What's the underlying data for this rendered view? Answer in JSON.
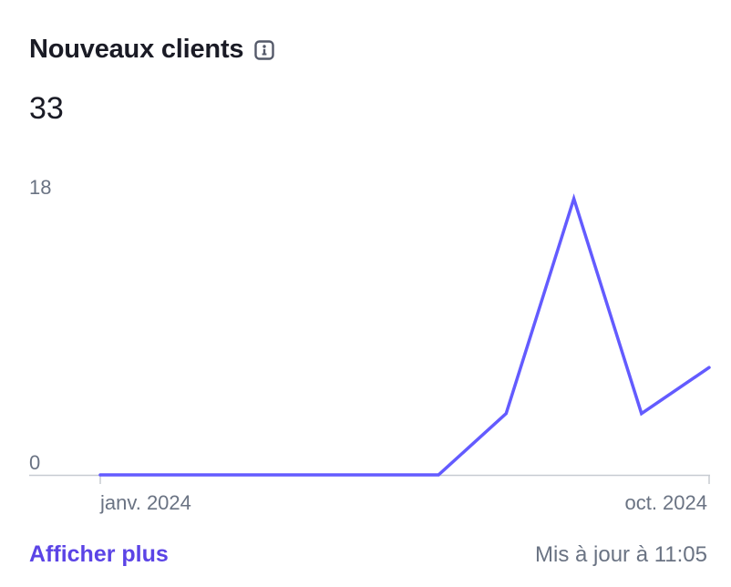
{
  "card": {
    "title": "Nouveaux clients",
    "metric_value": "33",
    "more_link": "Afficher plus",
    "updated_text": "Mis à jour à 11:05"
  },
  "icons": {
    "info": "info-icon"
  },
  "colors": {
    "line": "#635bff",
    "baseline": "#c7cbd1",
    "link": "#5b44e6",
    "muted_text": "#6a7383"
  },
  "chart_data": {
    "type": "line",
    "title": "Nouveaux clients",
    "xlabel": "",
    "ylabel": "",
    "ylim": [
      0,
      18
    ],
    "y_ticks": [
      "18",
      "0"
    ],
    "x_tick_labels": [
      "janv. 2024",
      "oct. 2024"
    ],
    "x": [
      "2024-01",
      "2024-02",
      "2024-03",
      "2024-04",
      "2024-05",
      "2024-06",
      "2024-07",
      "2024-08",
      "2024-09",
      "2024-10"
    ],
    "series": [
      {
        "values": [
          0,
          0,
          0,
          0,
          0,
          0,
          4,
          18,
          4,
          7
        ]
      }
    ],
    "grid": false,
    "legend": "none"
  }
}
